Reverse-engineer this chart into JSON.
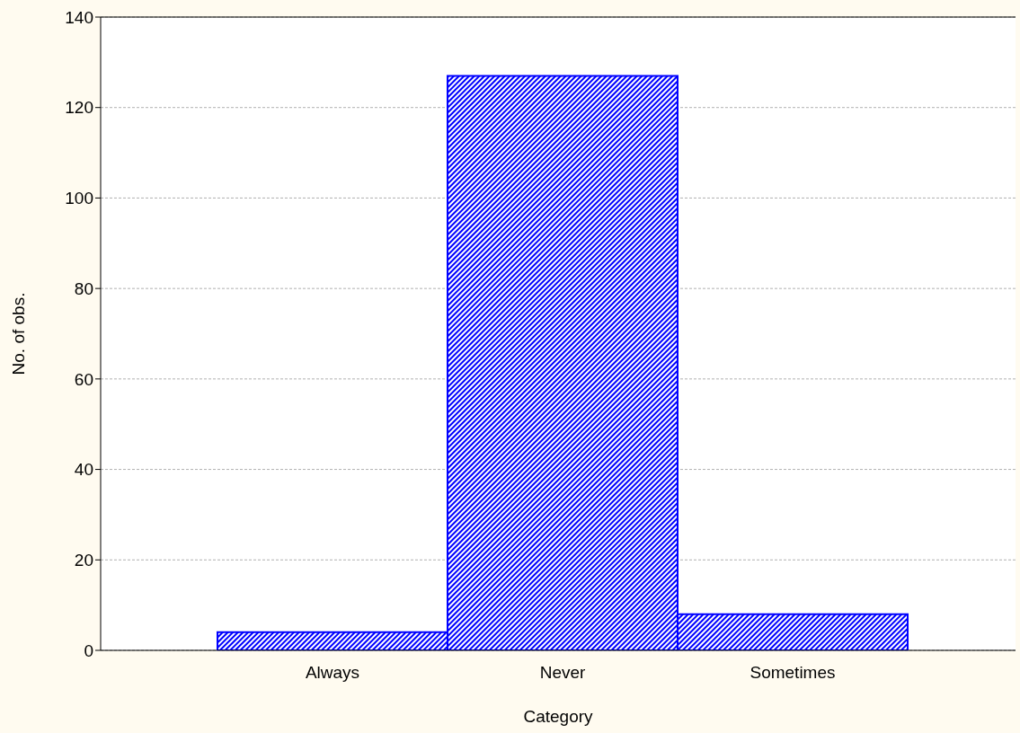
{
  "chart_data": {
    "type": "bar",
    "xlabel": "Category",
    "ylabel": "No. of obs.",
    "categories": [
      "Always",
      "Never",
      "Sometimes"
    ],
    "values": [
      4,
      127,
      8
    ],
    "color": "#0000ff",
    "ylim": [
      0,
      140
    ],
    "yticks": [
      0,
      20,
      40,
      60,
      80,
      100,
      120,
      140
    ],
    "grid": "y"
  }
}
